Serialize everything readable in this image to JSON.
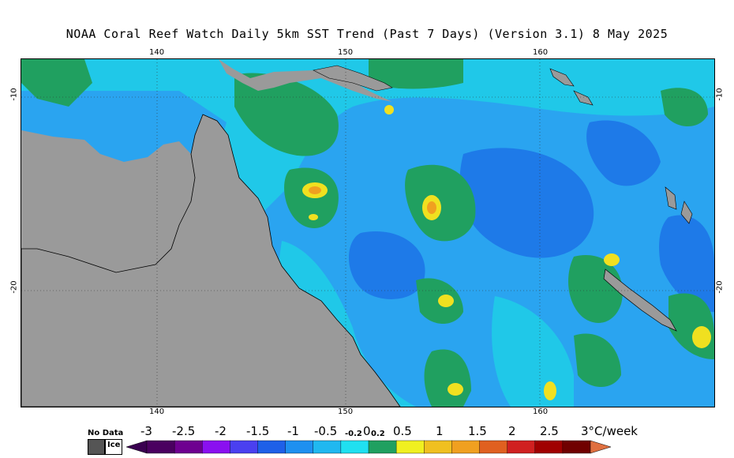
{
  "title": "NOAA Coral Reef Watch Daily 5km SST Trend (Past 7 Days) (Version 3.1)  8 May 2025",
  "map": {
    "lon_ticks": [
      "140",
      "150",
      "160"
    ],
    "lat_ticks": [
      "-10",
      "-20"
    ],
    "colors": {
      "land": "#9a9a9a",
      "ocean_dark": "#1e7ae8",
      "ocean_mid": "#2aa4f0",
      "ocean_light": "#20c8e8",
      "green": "#20a060",
      "yellow": "#f0e020",
      "orange": "#f0a020"
    }
  },
  "legend": {
    "no_data_label": "No Data",
    "ice_label": "Ice",
    "labels": [
      "-3",
      "-2.5",
      "-2",
      "-1.5",
      "-1",
      "-0.5",
      "-0.2",
      "0",
      "0.2",
      "0.5",
      "1",
      "1.5",
      "2",
      "2.5",
      "3°C/week"
    ],
    "colors": [
      "#4a0060",
      "#6e0090",
      "#8a10f0",
      "#4a40f0",
      "#1e60e8",
      "#1e90f0",
      "#20b8f0",
      "#20e0f0",
      "#20a060",
      "#f0f020",
      "#f0c020",
      "#f0a020",
      "#e06020",
      "#d02020",
      "#a00000",
      "#700000"
    ]
  }
}
